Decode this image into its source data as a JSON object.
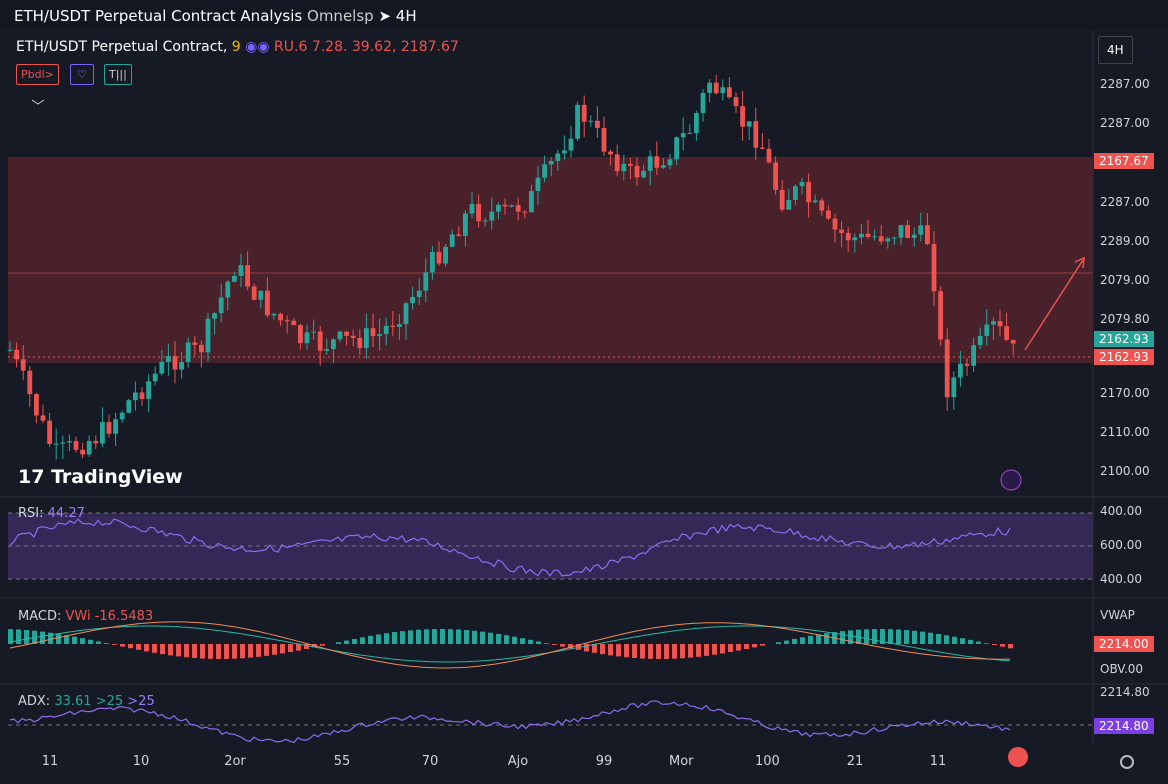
{
  "header": {
    "title": "ETH/USDT Perpetual Contract Analysis",
    "subtitle": "Omnelsp",
    "timeframe": "4H"
  },
  "legend": {
    "symbol": "ETH/USDT Perpetual Contract,",
    "count": "9",
    "values": "RU.6 7.28. 39.62, 2187.67"
  },
  "toolbar": [
    "Pbdl>",
    "T|||"
  ],
  "timeframe_button": "4H",
  "watermark": "TradingView",
  "price_axis": [
    "2287.00",
    "2287.00",
    "2167.67",
    "2287.00",
    "2289.00",
    "2079.00",
    "2079.80",
    "2162.93",
    "2162.93",
    "2170.00",
    "2110.00",
    "2100.00"
  ],
  "rsi": {
    "label": "RSI:",
    "value": "44.27",
    "axis": [
      "400.00",
      "600.00",
      "400.00"
    ]
  },
  "macd": {
    "label": "MACD:",
    "value": "VWi -16.5483",
    "axis": [
      "VWAP",
      "2214.00",
      "OBV.00"
    ]
  },
  "adx": {
    "label": "ADX:",
    "value": "33.61",
    "levels": [
      ">25",
      ">25"
    ],
    "axis": [
      "2214.80",
      "2214.80"
    ]
  },
  "time_axis": [
    "11",
    "10",
    "2or",
    "55",
    "70",
    "Ajo",
    "99",
    "Mor",
    "100",
    "21",
    "11"
  ]
}
